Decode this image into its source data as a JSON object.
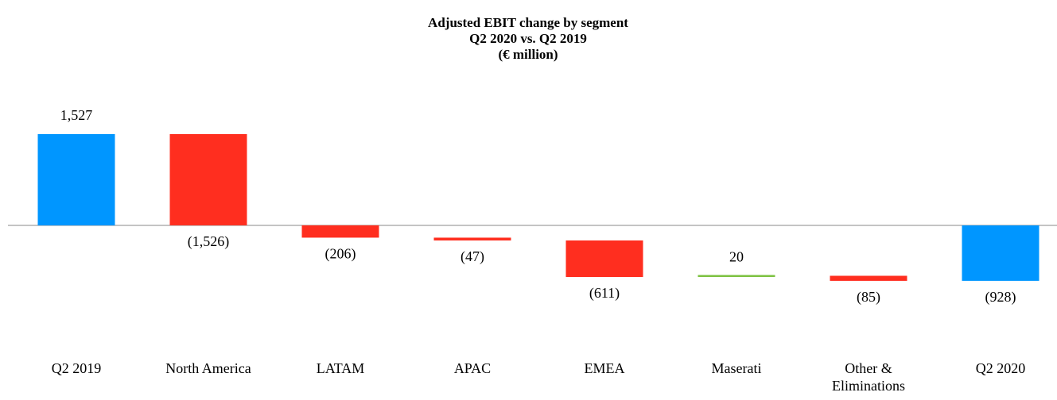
{
  "chart_data": {
    "type": "waterfall",
    "title": "Adjusted EBIT change by segment",
    "subtitle": "Q2 2020 vs. Q2 2019",
    "unit_label": "(€ million)",
    "categories": [
      "Q2 2019",
      "North America",
      "LATAM",
      "APAC",
      "EMEA",
      "Maserati",
      "Other & Eliminations",
      "Q2 2020"
    ],
    "values": [
      1527,
      -1526,
      -206,
      -47,
      -611,
      20,
      -85,
      -928
    ],
    "value_labels": [
      "1,527",
      "(1,526)",
      "(206)",
      "(47)",
      "(611)",
      "20",
      "(85)",
      "(928)"
    ],
    "totals": [
      true,
      false,
      false,
      false,
      false,
      false,
      false,
      true
    ],
    "colors": {
      "total": "#0096ff",
      "increase": "#7dc242",
      "decrease": "#ff2e1f"
    }
  }
}
